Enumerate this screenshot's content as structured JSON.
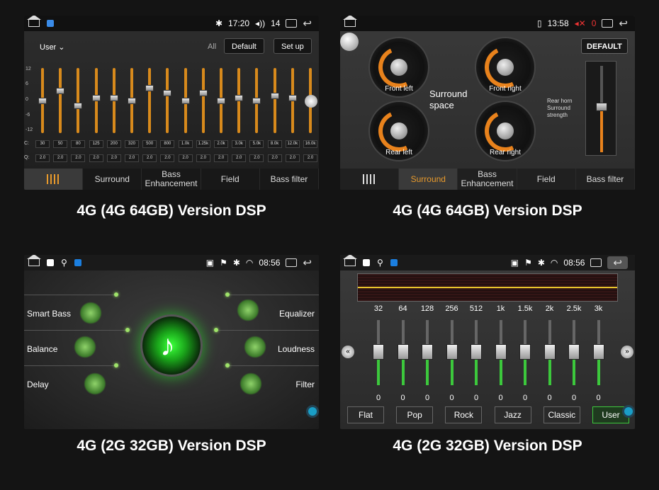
{
  "captions": {
    "top_left": "4G (4G 64GB) Version DSP",
    "top_right": "4G (4G 64GB) Version DSP",
    "bottom_left": "4G (2G 32GB) Version DSP",
    "bottom_right": "4G (2G 32GB) Version DSP"
  },
  "panel1": {
    "status": {
      "time": "17:20",
      "volume": "14"
    },
    "user_label": "User",
    "all_label": "All",
    "default_label": "Default",
    "setup_label": "Set up",
    "y_ticks": [
      "12",
      "6",
      "0",
      "-6",
      "-12"
    ],
    "row_labels": [
      "C:",
      "Q:"
    ],
    "freqs": [
      "30",
      "50",
      "80",
      "125",
      "200",
      "320",
      "500",
      "800",
      "1.0k",
      "1.25k",
      "2.0k",
      "3.0k",
      "5.0k",
      "8.0k",
      "12.0k",
      "16.0k"
    ],
    "q_values": [
      "2.0",
      "2.0",
      "2.0",
      "2.0",
      "2.0",
      "2.0",
      "2.0",
      "2.0",
      "2.0",
      "2.0",
      "2.0",
      "2.0",
      "2.0",
      "2.0",
      "2.0",
      "2.0"
    ],
    "levels": [
      0,
      4,
      -2,
      1,
      1,
      0,
      5,
      3,
      0,
      3,
      0,
      1,
      0,
      2,
      1,
      0
    ],
    "tabs": [
      "Surround",
      "Bass Enhancement",
      "Field",
      "Bass filter"
    ]
  },
  "panel2": {
    "status": {
      "time": "13:58",
      "volume": "0"
    },
    "dials": [
      "Front left",
      "Front right",
      "Rear left",
      "Rear right"
    ],
    "center_label": "Surround space",
    "rear_horn_label": "Rear horn Surround strength",
    "default_label": "DEFAULT",
    "tabs": [
      "Surround",
      "Bass Enhancement",
      "Field",
      "Bass filter"
    ]
  },
  "panel3": {
    "status": {
      "time": "08:56"
    },
    "left_items": [
      "Smart Bass",
      "Balance",
      "Delay"
    ],
    "right_items": [
      "Equalizer",
      "Loudness",
      "Filter"
    ]
  },
  "panel4": {
    "status": {
      "time": "08:56"
    },
    "freqs": [
      "32",
      "64",
      "128",
      "256",
      "512",
      "1k",
      "1.5k",
      "2k",
      "2.5k",
      "3k"
    ],
    "values": [
      "0",
      "0",
      "0",
      "0",
      "0",
      "0",
      "0",
      "0",
      "0",
      "0"
    ],
    "presets": [
      "Flat",
      "Pop",
      "Rock",
      "Jazz",
      "Classic",
      "User"
    ],
    "active_preset": "User"
  },
  "colors": {
    "accent_orange": "#e89a2c",
    "accent_green": "#3cc83c"
  }
}
